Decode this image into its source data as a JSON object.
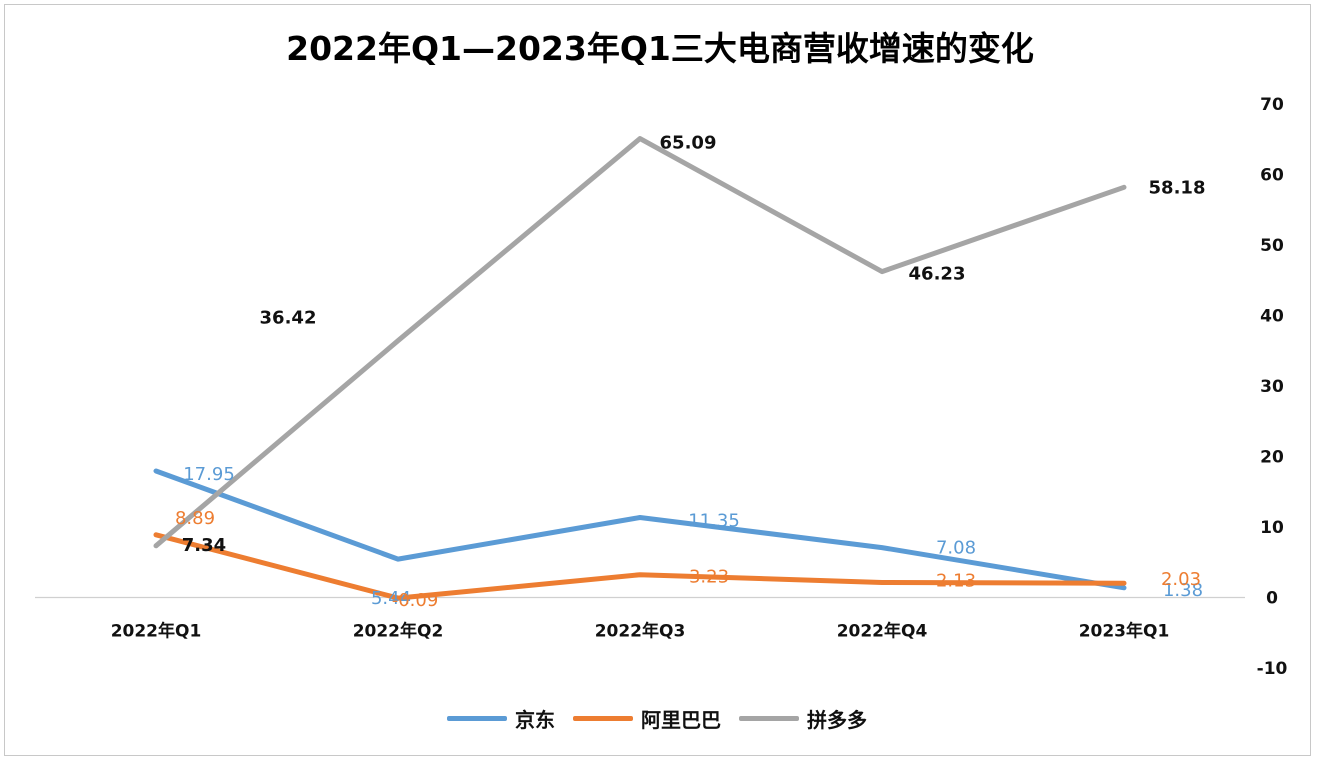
{
  "chart_data": {
    "type": "line",
    "title": "2022年Q1—2023年Q1三大电商营收增速的变化",
    "categories": [
      "2022年Q1",
      "2022年Q2",
      "2022年Q3",
      "2022年Q4",
      "2023年Q1"
    ],
    "y_axis": {
      "position": "right",
      "ylim": [
        -10,
        70
      ],
      "ticks": [
        70,
        60,
        50,
        40,
        30,
        20,
        10,
        0,
        -10
      ]
    },
    "grid": false,
    "legend_position": "bottom",
    "series": [
      {
        "name": "京东",
        "color": "#5B9BD5",
        "label_color": "#5B9BD5",
        "values": [
          17.95,
          5.44,
          11.35,
          7.08,
          1.38
        ],
        "labels": [
          "17.95",
          "5.44",
          "11.35",
          "7.08",
          "1.38"
        ]
      },
      {
        "name": "阿里巴巴",
        "color": "#ED7D31",
        "label_color": "#ED7D31",
        "values": [
          8.89,
          -0.09,
          3.23,
          2.13,
          2.03
        ],
        "labels": [
          "8.89",
          "-0.09",
          "3.23",
          "2.13",
          "2.03"
        ]
      },
      {
        "name": "拼多多",
        "color": "#A5A5A5",
        "label_color": "#111111",
        "values": [
          7.34,
          36.42,
          65.09,
          46.23,
          58.18
        ],
        "labels": [
          "7.34",
          "36.42",
          "65.09",
          "46.23",
          "58.18"
        ]
      }
    ]
  }
}
